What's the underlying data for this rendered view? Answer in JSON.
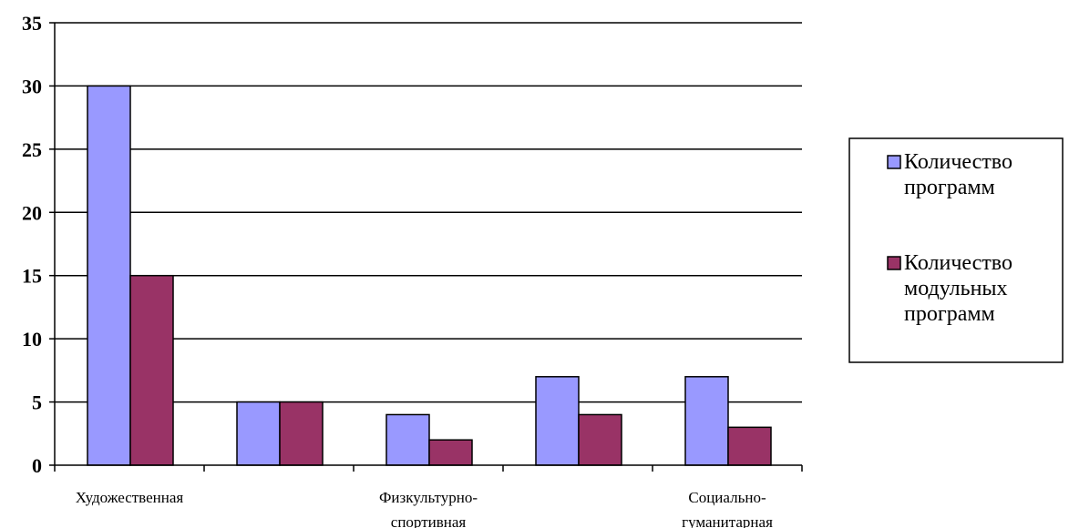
{
  "chart_data": {
    "type": "bar",
    "categories": [
      [
        "Художественная"
      ],
      [],
      [
        "Физкультурно-",
        "спортивная"
      ],
      [],
      [
        "Социально-",
        "гуманитарная"
      ]
    ],
    "series": [
      {
        "name": [
          "Количество",
          "программ"
        ],
        "values": [
          30,
          5,
          4,
          7,
          7
        ],
        "color": "#9999ff"
      },
      {
        "name": [
          "Количество",
          "модульных",
          "программ"
        ],
        "values": [
          15,
          5,
          2,
          4,
          3
        ],
        "color": "#993366"
      }
    ],
    "ylim": [
      0,
      35
    ],
    "yticks": [
      "0",
      "5",
      "10",
      "15",
      "20",
      "25",
      "30",
      "35"
    ],
    "grid": true,
    "legend_position": "right"
  }
}
